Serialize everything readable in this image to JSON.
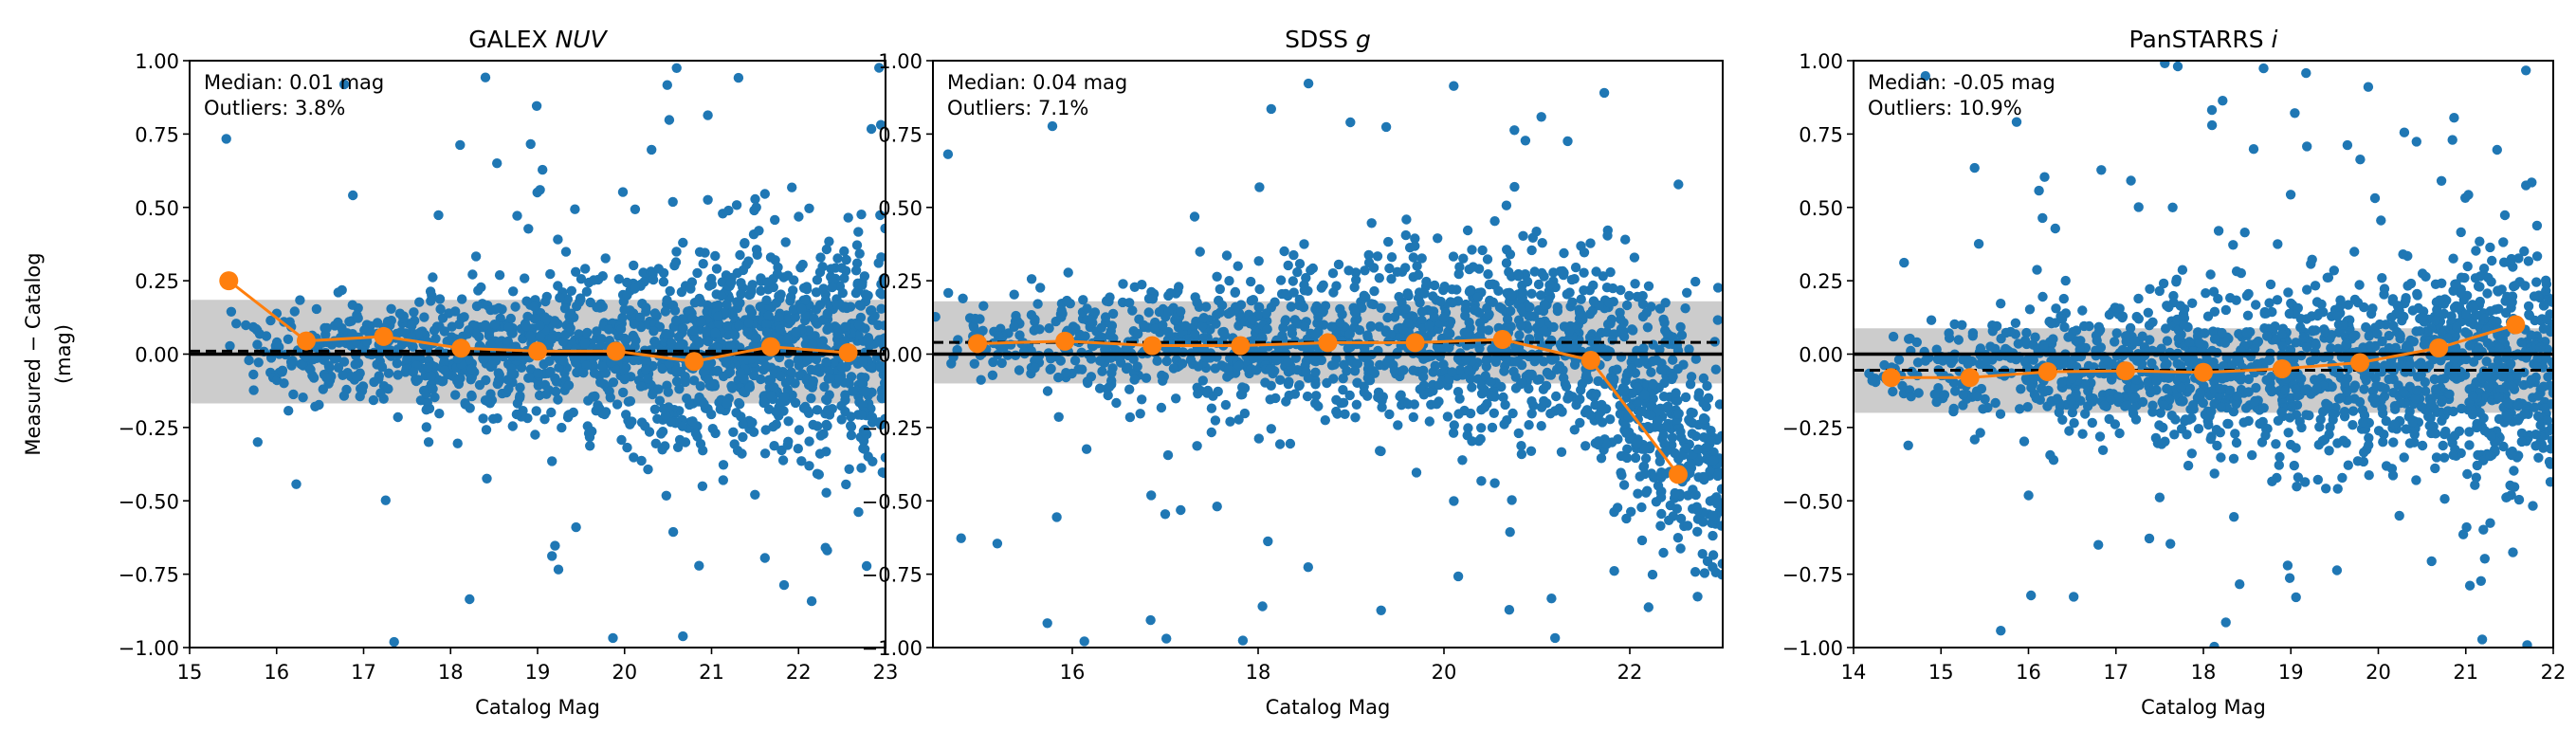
{
  "chart_data": [
    {
      "type": "scatter",
      "title": "GALEX ",
      "title_italic": "NUV",
      "xlabel": "Catalog Mag",
      "ylabel": "Measured − Catalog",
      "ylabel2": "(mag)",
      "xlim": [
        15,
        23
      ],
      "ylim": [
        -1,
        1
      ],
      "xticks": [
        "15",
        "16",
        "17",
        "18",
        "19",
        "20",
        "21",
        "22",
        "23"
      ],
      "xtick_values": [
        15,
        16,
        17,
        18,
        19,
        20,
        21,
        22,
        23
      ],
      "yticks": [
        "−1.00",
        "−0.75",
        "−0.50",
        "−0.25",
        "0.00",
        "0.25",
        "0.50",
        "0.75",
        "1.00"
      ],
      "ytick_values": [
        -1,
        -0.75,
        -0.5,
        -0.25,
        0,
        0.25,
        0.5,
        0.75,
        1
      ],
      "annotation_median": "Median: 0.01 mag",
      "annotation_outliers": "Outliers: 3.8%",
      "median_line": 0.01,
      "band": [
        -0.168,
        0.185
      ],
      "binned_median": {
        "x": [
          15.45,
          16.34,
          17.23,
          18.12,
          19.0,
          19.9,
          20.8,
          21.68,
          22.57
        ],
        "y": [
          0.25,
          0.045,
          0.06,
          0.02,
          0.01,
          0.01,
          -0.025,
          0.025,
          0.005
        ]
      },
      "scatter_x_range": [
        15.4,
        23
      ],
      "grid": false
    },
    {
      "type": "scatter",
      "title": "SDSS ",
      "title_italic": "g",
      "xlabel": "Catalog Mag",
      "ylabel": "",
      "xlim": [
        14.5,
        23
      ],
      "ylim": [
        -1,
        1
      ],
      "xticks": [
        "16",
        "18",
        "20",
        "22"
      ],
      "xtick_values": [
        16,
        18,
        20,
        22
      ],
      "yticks": [
        "−1.00",
        "−0.75",
        "−0.50",
        "−0.25",
        "0.00",
        "0.25",
        "0.50",
        "0.75",
        "1.00"
      ],
      "ytick_values": [
        -1,
        -0.75,
        -0.5,
        -0.25,
        0,
        0.25,
        0.5,
        0.75,
        1
      ],
      "annotation_median": "Median: 0.04 mag",
      "annotation_outliers": "Outliers: 7.1%",
      "median_line": 0.04,
      "band": [
        -0.1,
        0.18
      ],
      "binned_median": {
        "x": [
          14.98,
          15.92,
          16.86,
          17.81,
          18.75,
          19.69,
          20.63,
          21.58,
          22.52
        ],
        "y": [
          0.036,
          0.044,
          0.029,
          0.029,
          0.039,
          0.039,
          0.05,
          -0.021,
          -0.41
        ]
      },
      "scatter_x_range": [
        14.5,
        23
      ],
      "grid": false
    },
    {
      "type": "scatter",
      "title": "PanSTARRS ",
      "title_italic": "i",
      "xlabel": "Catalog Mag",
      "ylabel": "",
      "xlim": [
        14,
        22
      ],
      "ylim": [
        -1,
        1
      ],
      "xticks": [
        "14",
        "15",
        "16",
        "17",
        "18",
        "19",
        "20",
        "21",
        "22"
      ],
      "xtick_values": [
        14,
        15,
        16,
        17,
        18,
        19,
        20,
        21,
        22
      ],
      "yticks": [
        "−1.00",
        "−0.75",
        "−0.50",
        "−0.25",
        "0.00",
        "0.25",
        "0.50",
        "0.75",
        "1.00"
      ],
      "ytick_values": [
        -1,
        -0.75,
        -0.5,
        -0.25,
        0,
        0.25,
        0.5,
        0.75,
        1
      ],
      "annotation_median": "Median: -0.05 mag",
      "annotation_outliers": "Outliers: 10.9%",
      "median_line": -0.055,
      "band": [
        -0.2,
        0.088
      ],
      "binned_median": {
        "x": [
          14.43,
          15.33,
          16.22,
          17.11,
          18.0,
          18.9,
          19.79,
          20.69,
          21.57
        ],
        "y": [
          -0.08,
          -0.08,
          -0.06,
          -0.057,
          -0.062,
          -0.05,
          -0.029,
          0.021,
          0.1
        ]
      },
      "scatter_x_range": [
        14,
        22
      ],
      "grid": false
    }
  ],
  "colors": {
    "scatter": "#1f77b4",
    "binned": "#ff7f0e",
    "band": "#cccccc",
    "reference": "#000000"
  }
}
